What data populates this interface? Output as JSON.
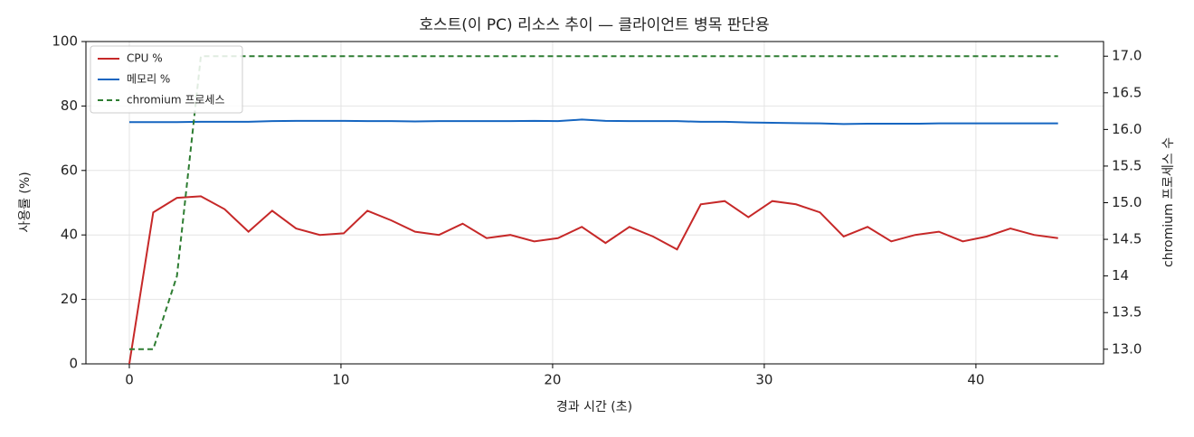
{
  "chart_data": {
    "type": "line",
    "title": "호스트(이 PC) 리소스 추이 — 클라이언트 병목 판단용",
    "xlabel": "경과 시간 (초)",
    "ylabel": "사용률 (%)",
    "y2label": "chromium 프로세스 수",
    "x": [
      0,
      1.13,
      2.25,
      3.38,
      4.5,
      5.63,
      6.75,
      7.88,
      9.0,
      10.13,
      11.25,
      12.38,
      13.5,
      14.63,
      15.75,
      16.88,
      18.0,
      19.13,
      20.25,
      21.38,
      22.5,
      23.63,
      24.75,
      25.88,
      27.0,
      28.13,
      29.25,
      30.38,
      31.5,
      32.63,
      33.75,
      34.88,
      36.0,
      37.13,
      38.25,
      39.38,
      40.5,
      41.63,
      42.75,
      43.88
    ],
    "series": [
      {
        "name": "CPU %",
        "color": "#c62828",
        "linestyle": "solid",
        "values": [
          0,
          47,
          51.5,
          52,
          48,
          41,
          47.5,
          42,
          40,
          40.5,
          47.5,
          44.5,
          41,
          40,
          43.5,
          39,
          40,
          38,
          39,
          42.5,
          37.5,
          42.5,
          39.5,
          35.5,
          49.5,
          50.5,
          45.5,
          50.5,
          49.5,
          47,
          39.5,
          42.5,
          38,
          40,
          41,
          38,
          39.5,
          42,
          40,
          39
        ]
      },
      {
        "name": "메모리 %",
        "color": "#1565c0",
        "linestyle": "solid",
        "values": [
          75,
          75,
          75,
          75.1,
          75.1,
          75.1,
          75.3,
          75.4,
          75.4,
          75.4,
          75.3,
          75.3,
          75.2,
          75.3,
          75.3,
          75.3,
          75.3,
          75.4,
          75.3,
          75.8,
          75.4,
          75.3,
          75.3,
          75.3,
          75.1,
          75.1,
          74.9,
          74.8,
          74.7,
          74.6,
          74.4,
          74.5,
          74.5,
          74.5,
          74.6,
          74.6,
          74.6,
          74.6,
          74.6,
          74.6
        ]
      },
      {
        "name": "chromium 프로세스",
        "color": "#2e7d32",
        "linestyle": "dashed",
        "axis": "y2",
        "values": [
          13,
          13,
          14,
          17,
          17,
          17,
          17,
          17,
          17,
          17,
          17,
          17,
          17,
          17,
          17,
          17,
          17,
          17,
          17,
          17,
          17,
          17,
          17,
          17,
          17,
          17,
          17,
          17,
          17,
          17,
          17,
          17,
          17,
          17,
          17,
          17,
          17,
          17,
          17,
          17
        ]
      }
    ],
    "xlim": [
      -2.05,
      46.03
    ],
    "xticks": [
      0,
      10,
      20,
      30,
      40
    ],
    "ylim": [
      0,
      100
    ],
    "yticks": [
      0,
      20,
      40,
      60,
      80,
      100
    ],
    "y2lim": [
      12.8,
      17.2
    ],
    "y2ticks": [
      {
        "value": 13,
        "label": "13.0"
      },
      13.5,
      14,
      {
        "value": 14,
        "label": "14.0"
      },
      14.5,
      {
        "value": 15,
        "label": "15.0"
      },
      15.5,
      {
        "value": 16,
        "label": "16.0"
      },
      16.5,
      {
        "value": 17,
        "label": "17.0"
      }
    ],
    "grid": true,
    "legend": "upper left"
  }
}
